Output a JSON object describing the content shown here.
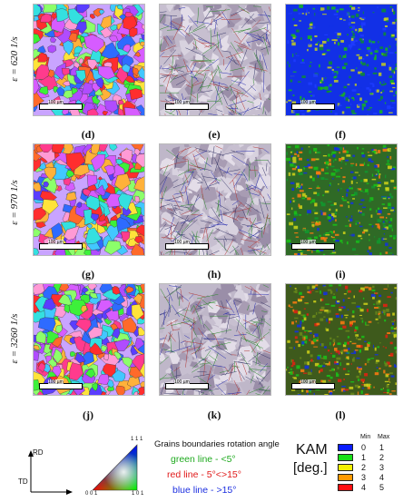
{
  "rows": [
    {
      "strain_rate": "ε = 620 1/s",
      "labels": [
        "(d)",
        "(e)",
        "(f)"
      ]
    },
    {
      "strain_rate": "ε = 970 1/s",
      "labels": [
        "(g)",
        "(h)",
        "(i)"
      ]
    },
    {
      "strain_rate": "ε = 3260 1/s",
      "labels": [
        "(j)",
        "(k)",
        "(l)"
      ]
    }
  ],
  "scale_bar_text": "100 µm",
  "ipf_legend": {
    "axis_rd": "RD",
    "axis_td": "TD",
    "corner_001": "0 0 1",
    "corner_101": "1 0 1",
    "corner_111": "1 1 1"
  },
  "boundary_legend": {
    "title": "Grains boundaries rotation angle",
    "green": {
      "text": "green line - <5°",
      "color": "#1faa1f"
    },
    "red": {
      "text": "red line - 5°<>15°",
      "color": "#e01818"
    },
    "blue": {
      "text": "blue line - >15°",
      "color": "#1c2fe0"
    }
  },
  "kam_legend": {
    "title_line1": "KAM",
    "title_line2": "[deg.]",
    "min_header": "Min",
    "max_header": "Max",
    "bins": [
      {
        "min": "0",
        "max": "1",
        "color": "#0a1cff"
      },
      {
        "min": "1",
        "max": "2",
        "color": "#18e018"
      },
      {
        "min": "2",
        "max": "3",
        "color": "#f2f000"
      },
      {
        "min": "3",
        "max": "4",
        "color": "#ff9a00"
      },
      {
        "min": "4",
        "max": "5",
        "color": "#ff1010"
      }
    ]
  }
}
